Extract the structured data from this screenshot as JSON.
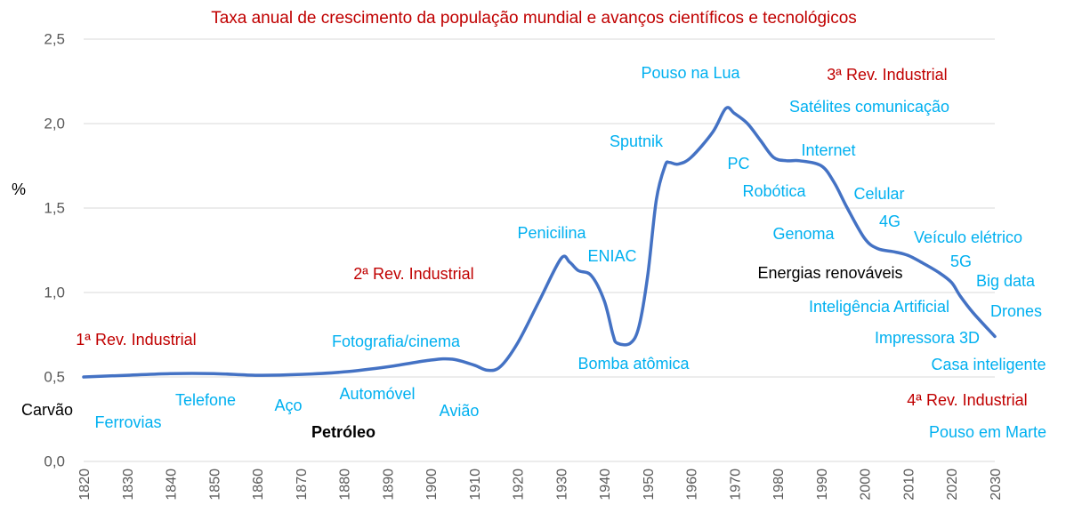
{
  "chart_data": {
    "type": "line",
    "title": "Taxa anual de crescimento da população mundial e avanços científicos e tecnológicos",
    "ylabel": "%",
    "xlabel": "",
    "xlim": [
      1820,
      2030
    ],
    "ylim": [
      0,
      2.5
    ],
    "grid": "horizontal",
    "x_ticks": [
      "1820",
      "1830",
      "1840",
      "1850",
      "1860",
      "1870",
      "1880",
      "1890",
      "1900",
      "1910",
      "1920",
      "1930",
      "1940",
      "1950",
      "1960",
      "1970",
      "1980",
      "1990",
      "2000",
      "2010",
      "2020",
      "2030"
    ],
    "y_ticks": [
      "0,0",
      "0,5",
      "1,0",
      "1,5",
      "2,0",
      "2,5"
    ],
    "series_color": "#4472c4",
    "series": [
      {
        "x": [
          1820,
          1830,
          1840,
          1850,
          1860,
          1870,
          1880,
          1890,
          1900,
          1905,
          1910,
          1913,
          1916,
          1920,
          1925,
          1930,
          1932,
          1934,
          1937,
          1940,
          1942,
          1943,
          1946,
          1948,
          1950,
          1952,
          1954,
          1955,
          1957,
          1960,
          1965,
          1968,
          1970,
          1973,
          1976,
          1979,
          1982,
          1985,
          1990,
          1993,
          1996,
          2000,
          2003,
          2007,
          2010,
          2013,
          2017,
          2020,
          2022,
          2025,
          2030
        ],
        "values": [
          0.5,
          0.51,
          0.52,
          0.52,
          0.51,
          0.515,
          0.53,
          0.56,
          0.6,
          0.605,
          0.57,
          0.54,
          0.56,
          0.7,
          0.95,
          1.2,
          1.18,
          1.13,
          1.1,
          0.95,
          0.75,
          0.7,
          0.7,
          0.8,
          1.1,
          1.55,
          1.75,
          1.77,
          1.76,
          1.8,
          1.95,
          2.09,
          2.06,
          2.0,
          1.9,
          1.8,
          1.78,
          1.78,
          1.75,
          1.65,
          1.5,
          1.32,
          1.26,
          1.24,
          1.22,
          1.18,
          1.12,
          1.06,
          0.98,
          0.88,
          0.74
        ]
      }
    ],
    "colors": {
      "revolution": "#c00000",
      "technology": "#00b0f0",
      "energy": "#000000",
      "title": "#c00000",
      "axis": "#595959"
    },
    "annotations": [
      {
        "text": "1ª Rev. Industrial",
        "kind": "revolution"
      },
      {
        "text": "Carvão",
        "kind": "energy"
      },
      {
        "text": "Ferrovias",
        "kind": "technology"
      },
      {
        "text": "Telefone",
        "kind": "technology"
      },
      {
        "text": "Aço",
        "kind": "technology"
      },
      {
        "text": "Petróleo",
        "kind": "energy"
      },
      {
        "text": "Automóvel",
        "kind": "technology"
      },
      {
        "text": "Fotografia/cinema",
        "kind": "technology"
      },
      {
        "text": "Avião",
        "kind": "technology"
      },
      {
        "text": "2ª Rev. Industrial",
        "kind": "revolution"
      },
      {
        "text": "Penicilina",
        "kind": "technology"
      },
      {
        "text": "ENIAC",
        "kind": "technology"
      },
      {
        "text": "Bomba atômica",
        "kind": "technology"
      },
      {
        "text": "Sputnik",
        "kind": "technology"
      },
      {
        "text": "Pouso na Lua",
        "kind": "technology"
      },
      {
        "text": "PC",
        "kind": "technology"
      },
      {
        "text": "Robótica",
        "kind": "technology"
      },
      {
        "text": "Internet",
        "kind": "technology"
      },
      {
        "text": "Satélites comunicação",
        "kind": "technology"
      },
      {
        "text": "3ª Rev. Industrial",
        "kind": "revolution"
      },
      {
        "text": "Celular",
        "kind": "technology"
      },
      {
        "text": "Genoma",
        "kind": "technology"
      },
      {
        "text": "4G",
        "kind": "technology"
      },
      {
        "text": "Veículo elétrico",
        "kind": "technology"
      },
      {
        "text": "Energias renováveis",
        "kind": "energy"
      },
      {
        "text": "5G",
        "kind": "technology"
      },
      {
        "text": "Big data",
        "kind": "technology"
      },
      {
        "text": "Inteligência Artificial",
        "kind": "technology"
      },
      {
        "text": "Drones",
        "kind": "technology"
      },
      {
        "text": "Impressora 3D",
        "kind": "technology"
      },
      {
        "text": "Casa inteligente",
        "kind": "technology"
      },
      {
        "text": "4ª Rev. Industrial",
        "kind": "revolution"
      },
      {
        "text": "Pouso em Marte",
        "kind": "technology"
      }
    ]
  }
}
